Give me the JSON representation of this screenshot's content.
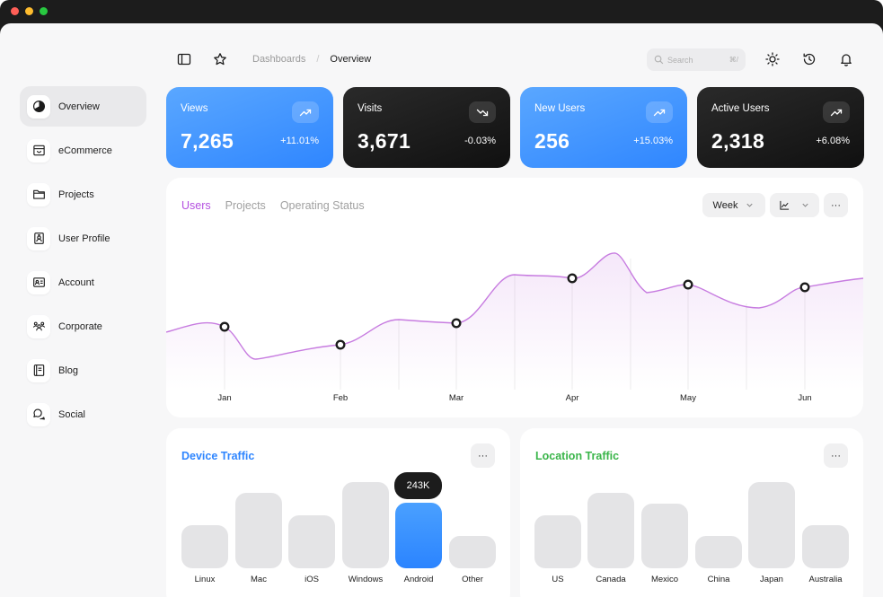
{
  "window": {
    "dot_colors": [
      "#ff5f57",
      "#febc2e",
      "#28c840"
    ]
  },
  "header": {
    "breadcrumb": {
      "parent": "Dashboards",
      "separator": "/",
      "current": "Overview"
    },
    "search": {
      "placeholder": "Search",
      "shortcut": "⌘/"
    }
  },
  "sidebar": {
    "items": [
      {
        "label": "Overview",
        "icon": "pie-chart-icon",
        "active": true
      },
      {
        "label": "eCommerce",
        "icon": "storefront-icon",
        "active": false
      },
      {
        "label": "Projects",
        "icon": "folder-icon",
        "active": false
      },
      {
        "label": "User Profile",
        "icon": "id-badge-icon",
        "active": false
      },
      {
        "label": "Account",
        "icon": "identification-card-icon",
        "active": false
      },
      {
        "label": "Corporate",
        "icon": "users-three-icon",
        "active": false
      },
      {
        "label": "Blog",
        "icon": "notebook-icon",
        "active": false
      },
      {
        "label": "Social",
        "icon": "chats-icon",
        "active": false
      }
    ]
  },
  "stats": [
    {
      "label": "Views",
      "value": "7,265",
      "change": "+11.01%",
      "trend": "up",
      "theme": "blue"
    },
    {
      "label": "Visits",
      "value": "3,671",
      "change": "-0.03%",
      "trend": "down",
      "theme": "dark"
    },
    {
      "label": "New Users",
      "value": "256",
      "change": "+15.03%",
      "trend": "up",
      "theme": "blue"
    },
    {
      "label": "Active Users",
      "value": "2,318",
      "change": "+6.08%",
      "trend": "up",
      "theme": "dark"
    }
  ],
  "main_chart": {
    "tabs": [
      "Users",
      "Projects",
      "Operating Status"
    ],
    "active_tab": "Users",
    "period": "Week",
    "more_label": "···",
    "months": [
      "Jan",
      "Feb",
      "Mar",
      "Apr",
      "May",
      "Jun"
    ],
    "line_color": "#c77ce0"
  },
  "device_traffic": {
    "title": "Device Traffic",
    "title_color": "#2f86ff",
    "more_label": "···",
    "highlight_value": "243K",
    "categories": [
      "Linux",
      "Mac",
      "iOS",
      "Windows",
      "Android",
      "Other"
    ],
    "levels": [
      0.43,
      0.75,
      0.53,
      0.86,
      0.65,
      0.32
    ],
    "highlight_index": 4
  },
  "location_traffic": {
    "title": "Location Traffic",
    "title_color": "#3ab54a",
    "more_label": "···",
    "categories": [
      "US",
      "Canada",
      "Mexico",
      "China",
      "Japan",
      "Australia"
    ],
    "levels": [
      0.53,
      0.75,
      0.64,
      0.32,
      0.86,
      0.43
    ]
  },
  "accent_colors": {
    "blue": "#2f86ff",
    "dark": "#1c1c1c",
    "purple": "#b450e0",
    "green": "#3ab54a"
  }
}
